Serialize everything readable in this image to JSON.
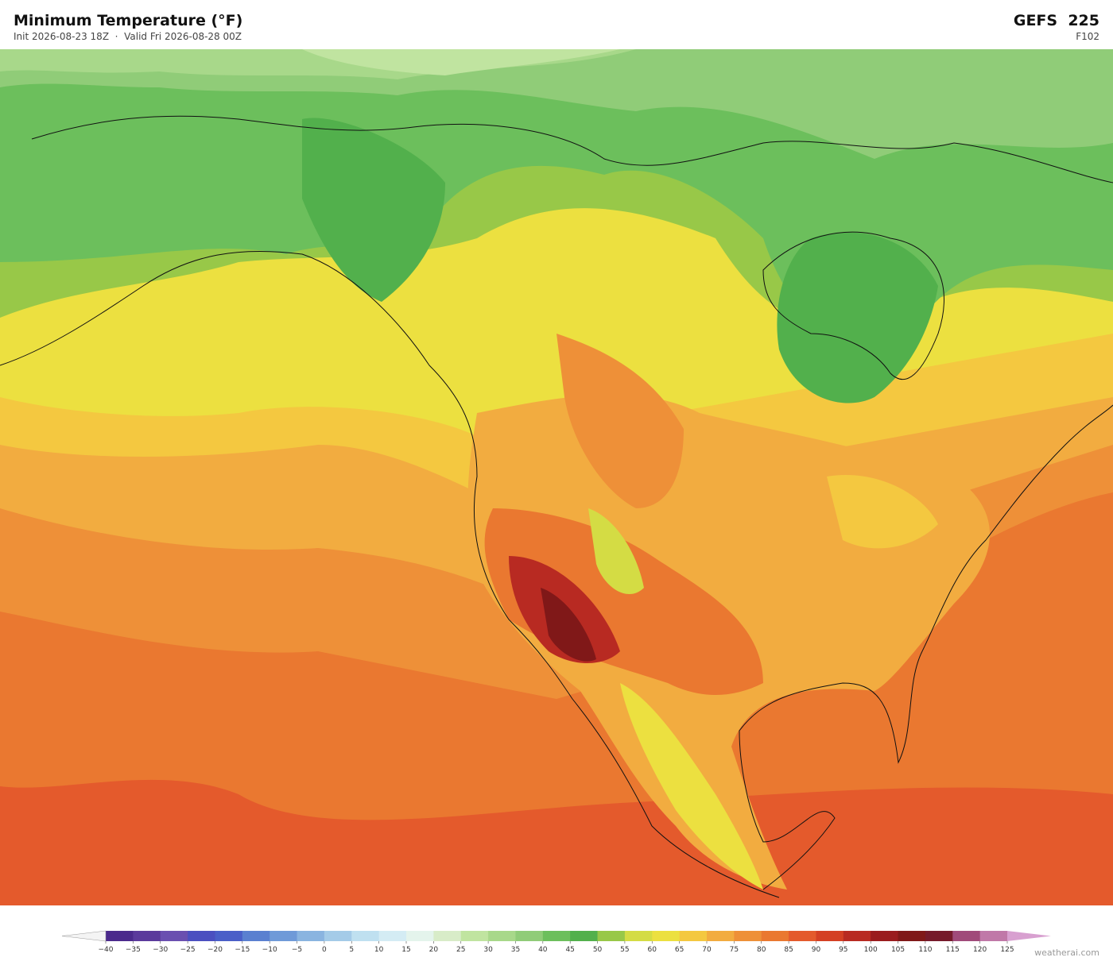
{
  "header": {
    "title": "Minimum Temperature  (°F)",
    "subtitle": "Init 2026-08-23 18Z  ·  Valid Fri 2026-08-28 00Z",
    "model": "GEFS  225",
    "forecast_hour": "F102"
  },
  "colorbar": {
    "ticks": [
      {
        "value": -40,
        "label": "−40"
      },
      {
        "value": -35,
        "label": "−35"
      },
      {
        "value": -30,
        "label": "−30"
      },
      {
        "value": -25,
        "label": "−25"
      },
      {
        "value": -20,
        "label": "−20"
      },
      {
        "value": -15,
        "label": "−15"
      },
      {
        "value": -10,
        "label": "−10"
      },
      {
        "value": -5,
        "label": "−5"
      },
      0,
      5,
      10,
      15,
      20,
      25,
      30,
      35,
      40,
      45,
      50,
      55,
      60,
      65,
      70,
      75,
      80,
      85,
      90,
      95,
      100,
      105,
      110,
      115,
      120,
      125
    ],
    "colors": [
      "#4b2a8c",
      "#5b3a9c",
      "#6a4fb0",
      "#4b4fc0",
      "#4a5fc8",
      "#5a80d0",
      "#6f9ad8",
      "#8ab4e0",
      "#a4cbe8",
      "#bfe0f0",
      "#d4ecf4",
      "#e4f4ec",
      "#d8ecc8",
      "#c0e4a0",
      "#a8d88a",
      "#90cc78",
      "#6cbf5c",
      "#52b04c",
      "#98c848",
      "#d4dc44",
      "#ece040",
      "#f4c840",
      "#f2ac40",
      "#ee9038",
      "#ea7830",
      "#e45a2c",
      "#d44024",
      "#b82a22",
      "#9a1c1e",
      "#801818",
      "#761a2a",
      "#a04a7a",
      "#c078a8"
    ],
    "under_color": "#f4f4f4",
    "over_color": "#d8a0d0"
  },
  "credit": "weatherai.com"
}
